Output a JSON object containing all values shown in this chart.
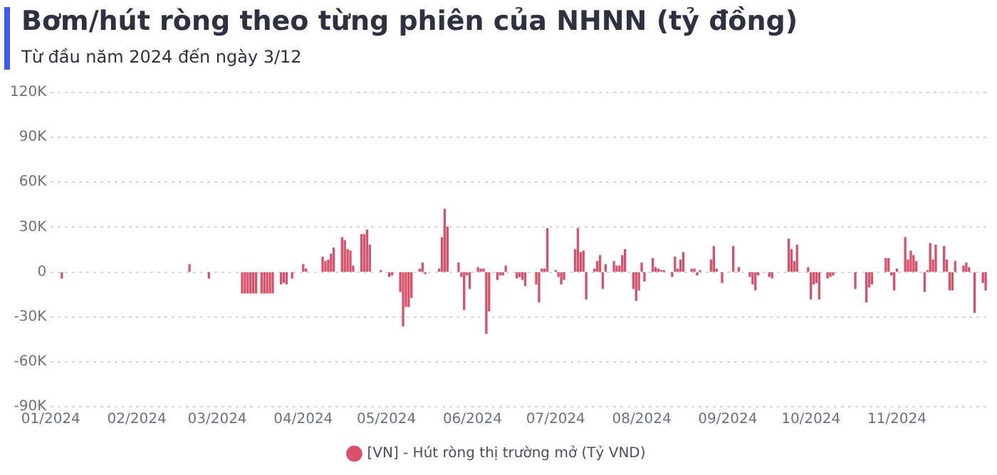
{
  "chart_data": {
    "type": "bar",
    "title": "Bơm/hút ròng theo từng phiên của NHNN (tỷ đồng)",
    "subtitle": "Từ đầu năm 2024 đến ngày 3/12",
    "x": [
      "2024-01-05",
      "2024-02-20",
      "2024-02-27",
      "2024-03-10",
      "2024-03-11",
      "2024-03-12",
      "2024-03-13",
      "2024-03-14",
      "2024-03-15",
      "2024-03-17",
      "2024-03-18",
      "2024-03-19",
      "2024-03-20",
      "2024-03-21",
      "2024-03-24",
      "2024-03-25",
      "2024-03-26",
      "2024-03-28",
      "2024-04-01",
      "2024-04-02",
      "2024-04-08",
      "2024-04-09",
      "2024-04-10",
      "2024-04-11",
      "2024-04-12",
      "2024-04-15",
      "2024-04-16",
      "2024-04-17",
      "2024-04-18",
      "2024-04-19",
      "2024-04-22",
      "2024-04-23",
      "2024-04-24",
      "2024-04-25",
      "2024-04-29",
      "2024-05-02",
      "2024-05-03",
      "2024-05-06",
      "2024-05-07",
      "2024-05-08",
      "2024-05-09",
      "2024-05-10",
      "2024-05-13",
      "2024-05-14",
      "2024-05-15",
      "2024-05-20",
      "2024-05-21",
      "2024-05-22",
      "2024-05-23",
      "2024-05-27",
      "2024-05-28",
      "2024-05-29",
      "2024-05-30",
      "2024-05-31",
      "2024-06-03",
      "2024-06-04",
      "2024-06-05",
      "2024-06-06",
      "2024-06-07",
      "2024-06-10",
      "2024-06-11",
      "2024-06-12",
      "2024-06-13",
      "2024-06-17",
      "2024-06-18",
      "2024-06-19",
      "2024-06-20",
      "2024-06-24",
      "2024-06-25",
      "2024-06-26",
      "2024-06-27",
      "2024-06-28",
      "2024-07-01",
      "2024-07-02",
      "2024-07-03",
      "2024-07-04",
      "2024-07-08",
      "2024-07-09",
      "2024-07-10",
      "2024-07-11",
      "2024-07-12",
      "2024-07-15",
      "2024-07-16",
      "2024-07-17",
      "2024-07-18",
      "2024-07-19",
      "2024-07-22",
      "2024-07-23",
      "2024-07-24",
      "2024-07-25",
      "2024-07-26",
      "2024-07-29",
      "2024-07-30",
      "2024-07-31",
      "2024-08-01",
      "2024-08-02",
      "2024-08-05",
      "2024-08-06",
      "2024-08-07",
      "2024-08-08",
      "2024-08-09",
      "2024-08-12",
      "2024-08-13",
      "2024-08-14",
      "2024-08-15",
      "2024-08-16",
      "2024-08-19",
      "2024-08-20",
      "2024-08-21",
      "2024-08-22",
      "2024-08-26",
      "2024-08-27",
      "2024-08-28",
      "2024-08-30",
      "2024-09-03",
      "2024-09-05",
      "2024-09-09",
      "2024-09-10",
      "2024-09-11",
      "2024-09-12",
      "2024-09-16",
      "2024-09-17",
      "2024-09-23",
      "2024-09-24",
      "2024-09-25",
      "2024-09-26",
      "2024-09-30",
      "2024-10-01",
      "2024-10-02",
      "2024-10-03",
      "2024-10-04",
      "2024-10-07",
      "2024-10-08",
      "2024-10-09",
      "2024-10-17",
      "2024-10-21",
      "2024-10-22",
      "2024-10-23",
      "2024-10-28",
      "2024-10-29",
      "2024-10-30",
      "2024-10-31",
      "2024-11-01",
      "2024-11-04",
      "2024-11-05",
      "2024-11-06",
      "2024-11-07",
      "2024-11-08",
      "2024-11-11",
      "2024-11-12",
      "2024-11-13",
      "2024-11-14",
      "2024-11-15",
      "2024-11-18",
      "2024-11-19",
      "2024-11-20",
      "2024-11-21",
      "2024-11-22",
      "2024-11-25",
      "2024-11-26",
      "2024-11-27",
      "2024-11-29",
      "2024-12-02",
      "2024-12-03"
    ],
    "series": [
      {
        "name": "[VN] - Hút ròng thị trường mở (Tỷ VND)",
        "color": "#d9506a",
        "values": [
          -4000,
          5000,
          -4000,
          -14000,
          -14000,
          -14000,
          -14000,
          -14000,
          -14000,
          -14000,
          -14000,
          -14000,
          -14000,
          -14000,
          -8000,
          -7000,
          -8000,
          -4000,
          5000,
          2000,
          10000,
          7000,
          8000,
          12000,
          16000,
          23000,
          21000,
          15000,
          14000,
          4000,
          25000,
          25000,
          28000,
          18000,
          1000,
          -3000,
          -2000,
          -13000,
          -36000,
          -23000,
          -23000,
          -17000,
          2000,
          6000,
          -1000,
          2000,
          23000,
          42000,
          30000,
          6000,
          -3000,
          -25000,
          -2000,
          -11000,
          3000,
          2000,
          2000,
          -41000,
          -26000,
          -5000,
          -2000,
          -2000,
          4000,
          -4000,
          -3000,
          -5000,
          -9000,
          -8000,
          -20000,
          2000,
          2000,
          29000,
          1000,
          -3000,
          -8000,
          -5000,
          15000,
          29000,
          13000,
          14000,
          -18000,
          2000,
          7000,
          11000,
          -11000,
          5000,
          7000,
          4000,
          4000,
          11000,
          15000,
          -11000,
          -19000,
          -12000,
          6000,
          -6000,
          9000,
          3000,
          2000,
          1000,
          1000,
          -3000,
          10000,
          2000,
          8000,
          13000,
          2000,
          2000,
          -2000,
          1000,
          8000,
          17000,
          2000,
          -7000,
          17000,
          3000,
          -3000,
          -8000,
          -12000,
          -2000,
          -3000,
          -4000,
          22000,
          15000,
          7000,
          18000,
          3000,
          -18000,
          -8000,
          -7000,
          -18000,
          -4000,
          -3000,
          -2000,
          -11000,
          -20000,
          -10000,
          -8000,
          9000,
          9000,
          -2000,
          -12000,
          2000,
          23000,
          8000,
          14000,
          11000,
          7000,
          -13000,
          1000,
          19000,
          8000,
          18000,
          17000,
          8000,
          -12000,
          -12000,
          7000,
          4000,
          6000,
          3000,
          -27000,
          -7000,
          -12000
        ]
      }
    ],
    "xlim": [
      "2024-01-01",
      "2024-12-04"
    ],
    "xticks": [
      {
        "value": "2024-01-01",
        "label": "01/2024"
      },
      {
        "value": "2024-02-01",
        "label": "02/2024"
      },
      {
        "value": "2024-03-01",
        "label": "03/2024"
      },
      {
        "value": "2024-04-01",
        "label": "04/2024"
      },
      {
        "value": "2024-05-01",
        "label": "05/2024"
      },
      {
        "value": "2024-06-01",
        "label": "06/2024"
      },
      {
        "value": "2024-07-01",
        "label": "07/2024"
      },
      {
        "value": "2024-08-01",
        "label": "08/2024"
      },
      {
        "value": "2024-09-01",
        "label": "09/2024"
      },
      {
        "value": "2024-10-01",
        "label": "10/2024"
      },
      {
        "value": "2024-11-01",
        "label": "11/2024"
      }
    ],
    "ylim": [
      -90000,
      120000
    ],
    "yticks": [
      {
        "value": -90000,
        "label": "-90K"
      },
      {
        "value": -60000,
        "label": "-60K"
      },
      {
        "value": -30000,
        "label": "-30K"
      },
      0,
      {
        "value": 30000,
        "label": "30K"
      },
      {
        "value": 60000,
        "label": "60K"
      },
      {
        "value": 90000,
        "label": "90K"
      },
      {
        "value": 120000,
        "label": "120K"
      }
    ],
    "grid": "y",
    "legend": "bottom"
  }
}
